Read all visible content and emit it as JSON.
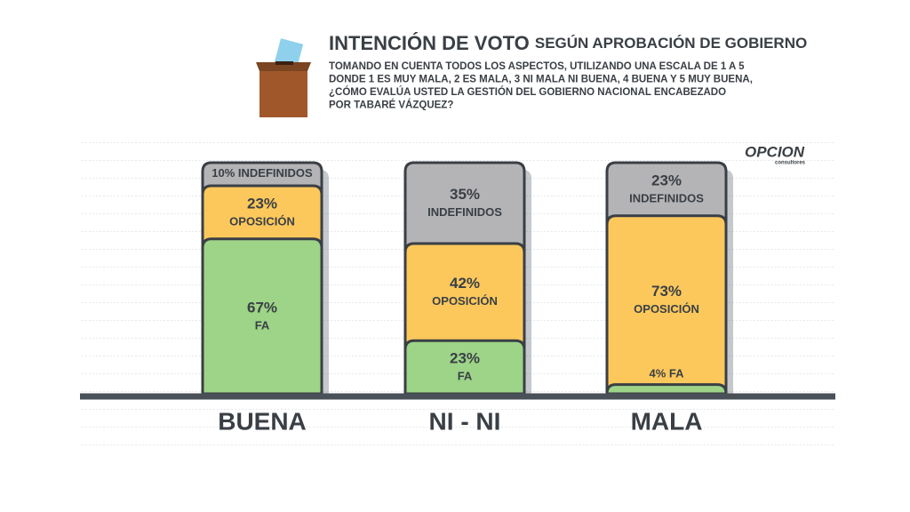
{
  "chart_data": {
    "type": "stacked_bar",
    "title": "INTENCIÓN DE VOTO",
    "title_suffix": "SEGÚN APROBACIÓN DE GOBIERNO",
    "subtitle_lines": [
      "TOMANDO EN CUENTA TODOS LOS ASPECTOS, UTILIZANDO UNA ESCALA DE 1 A 5",
      "DONDE 1 ES MUY MALA, 2 ES MALA, 3 NI MALA NI BUENA, 4 BUENA Y 5 MUY BUENA,",
      "¿CÓMO EVALÚA USTED LA GESTIÓN DEL GOBIERNO NACIONAL ENCABEZADO",
      "POR TABARÉ VÁZQUEZ?"
    ],
    "logo": "OPCION",
    "logo_sub": "consultores",
    "categories": [
      "BUENA",
      "NI - NI",
      "MALA"
    ],
    "series": [
      {
        "name": "FA",
        "color": "#9dd488",
        "values": [
          67,
          23,
          4
        ],
        "value_labels": [
          "67%",
          "23%",
          "4%"
        ]
      },
      {
        "name": "OPOSICIÓN",
        "color": "#fcc85c",
        "values": [
          23,
          42,
          73
        ],
        "value_labels": [
          "23%",
          "42%",
          "73%"
        ]
      },
      {
        "name": "INDEFINIDOS",
        "color": "#b4b4b6",
        "values": [
          10,
          35,
          23
        ],
        "value_labels": [
          "10%",
          "35%",
          "23%"
        ]
      }
    ]
  }
}
